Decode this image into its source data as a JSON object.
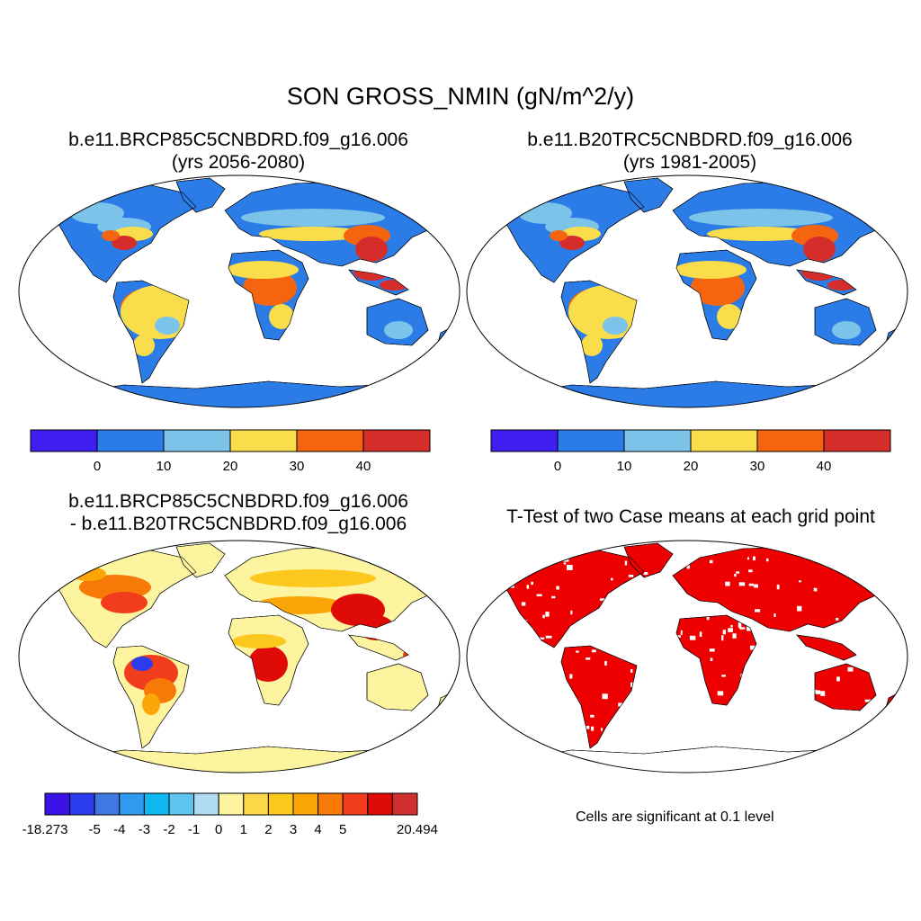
{
  "figure": {
    "title": "SON GROSS_NMIN (gN/m^2/y)"
  },
  "panels": [
    {
      "line1": "b.e11.BRCP85C5CNBDRD.f09_g16.006",
      "line2": "(yrs 2056-2080)"
    },
    {
      "line1": "b.e11.B20TRC5CNBDRD.f09_g16.006",
      "line2": "(yrs 1981-2005)"
    },
    {
      "line1": "b.e11.BRCP85C5CNBDRD.f09_g16.006",
      "line2": "- b.e11.B20TRC5CNBDRD.f09_g16.006"
    },
    {
      "line1": "T-Test of two Case means at each grid point",
      "line2": ""
    }
  ],
  "colorbars": {
    "absolute": {
      "colors": [
        "#3f1ef0",
        "#2b7ce6",
        "#7cc3ea",
        "#f9dd4a",
        "#f5640f",
        "#d52d2a"
      ],
      "labels": [
        "0",
        "10",
        "20",
        "30",
        "40"
      ]
    },
    "difference": {
      "colors": [
        "#3a14e6",
        "#2b3ced",
        "#3f78e0",
        "#2e9af0",
        "#10b8f0",
        "#5cc4ee",
        "#afdcf0",
        "#fff5a0",
        "#fdd94a",
        "#fdc81e",
        "#fba606",
        "#f77a08",
        "#f13d1b",
        "#df0b06",
        "#cf2f2f"
      ],
      "labels": [
        "-18.273",
        "-5",
        "-4",
        "-3",
        "-2",
        "-1",
        "0",
        "1",
        "2",
        "3",
        "4",
        "5",
        "20.494"
      ]
    }
  },
  "ttest": {
    "note": "Cells are significant at 0.1 level",
    "color": "#ee0000"
  },
  "map_colors": {
    "land_base": "#2b7ce6",
    "diff_base": "#fdf4a0",
    "ocean": "#ffffff"
  }
}
